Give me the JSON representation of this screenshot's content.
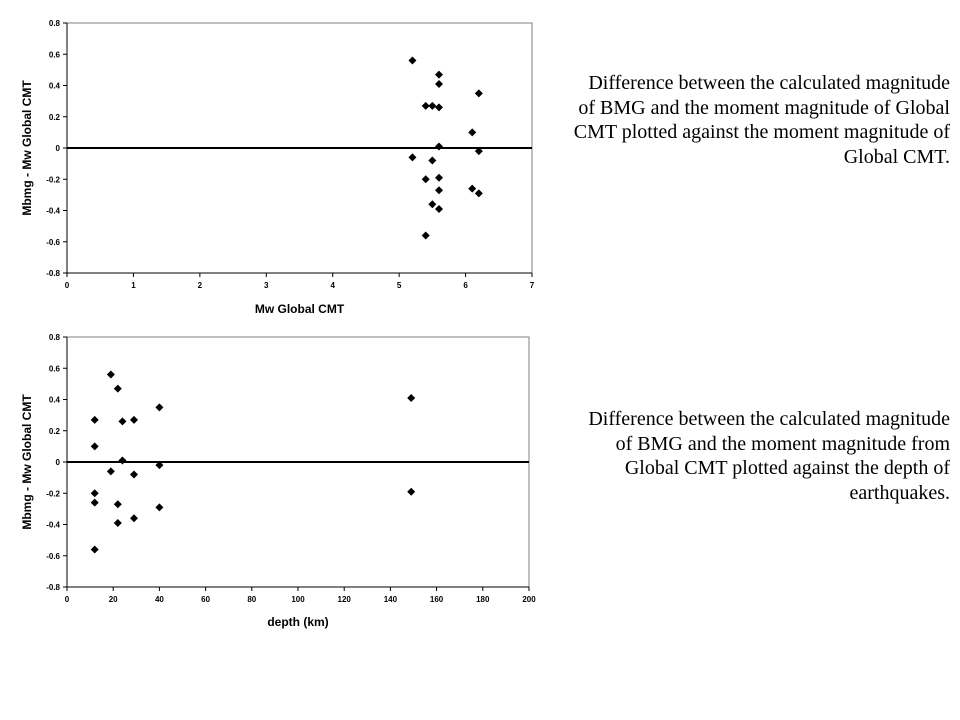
{
  "chart_data": [
    {
      "type": "scatter",
      "xlabel": "Mw Global CMT",
      "ylabel": "Mbmg - Mw Global CMT",
      "xlim": [
        0,
        7
      ],
      "ylim": [
        -0.8,
        0.8
      ],
      "xticks": [
        "0",
        "1",
        "2",
        "3",
        "4",
        "5",
        "6",
        "7"
      ],
      "yticks": [
        "0.8",
        "0.6",
        "0.4",
        "0.2",
        "0",
        "-0.2",
        "-0.4",
        "-0.6",
        "-0.8"
      ],
      "reference_line_y": 0,
      "grid": false,
      "points": [
        {
          "x": 5.2,
          "y": 0.56
        },
        {
          "x": 5.6,
          "y": 0.47
        },
        {
          "x": 5.6,
          "y": 0.41
        },
        {
          "x": 6.2,
          "y": 0.35
        },
        {
          "x": 5.4,
          "y": 0.27
        },
        {
          "x": 5.5,
          "y": 0.27
        },
        {
          "x": 5.6,
          "y": 0.26
        },
        {
          "x": 6.1,
          "y": 0.1
        },
        {
          "x": 5.6,
          "y": 0.01
        },
        {
          "x": 6.2,
          "y": -0.02
        },
        {
          "x": 5.2,
          "y": -0.06
        },
        {
          "x": 5.5,
          "y": -0.08
        },
        {
          "x": 5.6,
          "y": -0.19
        },
        {
          "x": 5.4,
          "y": -0.2
        },
        {
          "x": 6.1,
          "y": -0.26
        },
        {
          "x": 5.6,
          "y": -0.27
        },
        {
          "x": 6.2,
          "y": -0.29
        },
        {
          "x": 5.5,
          "y": -0.36
        },
        {
          "x": 5.6,
          "y": -0.39
        },
        {
          "x": 5.4,
          "y": -0.56
        }
      ]
    },
    {
      "type": "scatter",
      "xlabel": "depth (km)",
      "ylabel": "Mbmg - Mw Global CMT",
      "xlim": [
        0,
        200
      ],
      "ylim": [
        -0.8,
        0.8
      ],
      "xticks": [
        "0",
        "20",
        "40",
        "60",
        "80",
        "100",
        "120",
        "140",
        "160",
        "180",
        "200"
      ],
      "yticks": [
        "0.8",
        "0.6",
        "0.4",
        "0.2",
        "0",
        "-0.2",
        "-0.4",
        "-0.6",
        "-0.8"
      ],
      "reference_line_y": 0,
      "grid": false,
      "points": [
        {
          "x": 19,
          "y": 0.56
        },
        {
          "x": 22,
          "y": 0.47
        },
        {
          "x": 149,
          "y": 0.41
        },
        {
          "x": 40,
          "y": 0.35
        },
        {
          "x": 12,
          "y": 0.27
        },
        {
          "x": 29,
          "y": 0.27
        },
        {
          "x": 24,
          "y": 0.26
        },
        {
          "x": 12,
          "y": 0.1
        },
        {
          "x": 24,
          "y": 0.01
        },
        {
          "x": 40,
          "y": -0.02
        },
        {
          "x": 19,
          "y": -0.06
        },
        {
          "x": 29,
          "y": -0.08
        },
        {
          "x": 149,
          "y": -0.19
        },
        {
          "x": 12,
          "y": -0.2
        },
        {
          "x": 12,
          "y": -0.26
        },
        {
          "x": 22,
          "y": -0.27
        },
        {
          "x": 40,
          "y": -0.29
        },
        {
          "x": 29,
          "y": -0.36
        },
        {
          "x": 22,
          "y": -0.39
        },
        {
          "x": 12,
          "y": -0.56
        }
      ]
    }
  ],
  "captions": {
    "top": "Difference between the calculated magnitude of BMG and the moment magnitude of Global CMT plotted against the moment magnitude of Global CMT.",
    "bottom": "Difference between the calculated magnitude of BMG and the moment magnitude from Global CMT plotted against the depth of earthquakes."
  }
}
